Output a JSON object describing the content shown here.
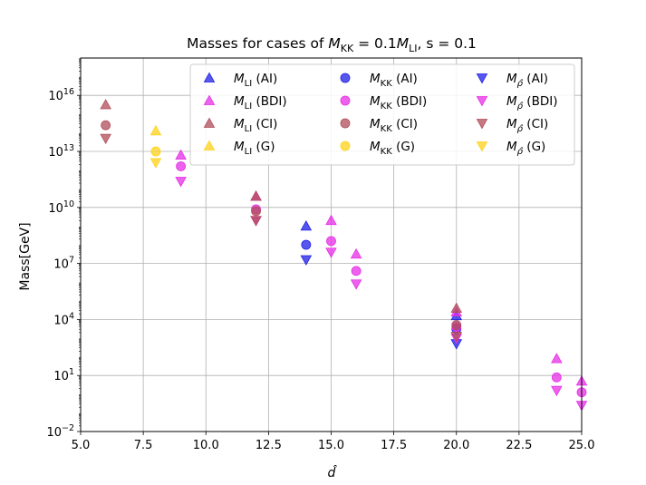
{
  "chart_data": {
    "type": "scatter",
    "title": "Masses for cases of M_KK = 0.1M_LI, s = 0.1",
    "title_parts": {
      "prefix": "Masses for cases of ",
      "m": "M",
      "kk_sub": "KK",
      "eq": " = 0.1",
      "li_sub": "LI",
      "suffix": ", s = 0.1"
    },
    "xlabel": "d̂",
    "ylabel": "Mass[GeV]",
    "y_scale": "log",
    "xlim": [
      5.0,
      25.0
    ],
    "ylim_exp": [
      -2,
      18
    ],
    "grid": true,
    "x_ticks": [
      {
        "value": 5.0,
        "label": "5.0"
      },
      {
        "value": 7.5,
        "label": "7.5"
      },
      {
        "value": 10.0,
        "label": "10.0"
      },
      {
        "value": 12.5,
        "label": "12.5"
      },
      {
        "value": 15.0,
        "label": "15.0"
      },
      {
        "value": 17.5,
        "label": "17.5"
      },
      {
        "value": 20.0,
        "label": "20.0"
      },
      {
        "value": 22.5,
        "label": "22.5"
      },
      {
        "value": 25.0,
        "label": "25.0"
      }
    ],
    "y_ticks": [
      {
        "exp": -2,
        "base": "10",
        "sup": "−2"
      },
      {
        "exp": 1,
        "base": "10",
        "sup": "1"
      },
      {
        "exp": 4,
        "base": "10",
        "sup": "4"
      },
      {
        "exp": 7,
        "base": "10",
        "sup": "7"
      },
      {
        "exp": 10,
        "base": "10",
        "sup": "10"
      },
      {
        "exp": 13,
        "base": "10",
        "sup": "13"
      },
      {
        "exp": 16,
        "base": "10",
        "sup": "16"
      }
    ],
    "legend_position": "top-right",
    "series": [
      {
        "name": "M_LI (AI)",
        "sym": "LI",
        "group": "AI",
        "marker": "triangle-up",
        "color": "#1f1fe6",
        "points": [
          {
            "x": 14,
            "log10_mass": 9.0
          },
          {
            "x": 20,
            "log10_mass": 4.2
          }
        ]
      },
      {
        "name": "M_LI (BDI)",
        "sym": "LI",
        "group": "BDI",
        "marker": "triangle-up",
        "color": "#e62ee6",
        "points": [
          {
            "x": 9,
            "log10_mass": 12.8
          },
          {
            "x": 12,
            "log10_mass": 10.6
          },
          {
            "x": 15,
            "log10_mass": 9.3
          },
          {
            "x": 16,
            "log10_mass": 7.5
          },
          {
            "x": 20,
            "log10_mass": 4.4
          },
          {
            "x": 24,
            "log10_mass": 1.9
          },
          {
            "x": 25,
            "log10_mass": 0.7
          }
        ]
      },
      {
        "name": "M_LI (CI)",
        "sym": "LI",
        "group": "CI",
        "marker": "triangle-up",
        "color": "#b04c5a",
        "points": [
          {
            "x": 6,
            "log10_mass": 15.5
          },
          {
            "x": 12,
            "log10_mass": 10.6
          },
          {
            "x": 20,
            "log10_mass": 4.6
          }
        ]
      },
      {
        "name": "M_LI (G)",
        "sym": "LI",
        "group": "G",
        "marker": "triangle-up",
        "color": "#ffd21a",
        "points": [
          {
            "x": 8,
            "log10_mass": 14.1
          }
        ]
      },
      {
        "name": "M_KK (AI)",
        "sym": "KK",
        "group": "AI",
        "marker": "circle",
        "color": "#1f1fe6",
        "points": [
          {
            "x": 14,
            "log10_mass": 8.0
          },
          {
            "x": 20,
            "log10_mass": 3.5
          }
        ]
      },
      {
        "name": "M_KK (BDI)",
        "sym": "KK",
        "group": "BDI",
        "marker": "circle",
        "color": "#e62ee6",
        "points": [
          {
            "x": 9,
            "log10_mass": 12.2
          },
          {
            "x": 12,
            "log10_mass": 9.9
          },
          {
            "x": 15,
            "log10_mass": 8.2
          },
          {
            "x": 16,
            "log10_mass": 6.6
          },
          {
            "x": 20,
            "log10_mass": 3.6
          },
          {
            "x": 24,
            "log10_mass": 0.9
          },
          {
            "x": 25,
            "log10_mass": 0.1
          }
        ]
      },
      {
        "name": "M_KK (CI)",
        "sym": "KK",
        "group": "CI",
        "marker": "circle",
        "color": "#b04c5a",
        "points": [
          {
            "x": 6,
            "log10_mass": 14.4
          },
          {
            "x": 12,
            "log10_mass": 9.8
          },
          {
            "x": 20,
            "log10_mass": 3.7
          }
        ]
      },
      {
        "name": "M_KK (G)",
        "sym": "KK",
        "group": "G",
        "marker": "circle",
        "color": "#ffd21a",
        "points": [
          {
            "x": 8,
            "log10_mass": 13.0
          }
        ]
      },
      {
        "name": "M_rho (AI)",
        "sym": "rho",
        "group": "AI",
        "marker": "triangle-down",
        "color": "#1f1fe6",
        "points": [
          {
            "x": 14,
            "log10_mass": 7.2
          },
          {
            "x": 20,
            "log10_mass": 2.7
          }
        ]
      },
      {
        "name": "M_rho (BDI)",
        "sym": "rho",
        "group": "BDI",
        "marker": "triangle-down",
        "color": "#e62ee6",
        "points": [
          {
            "x": 9,
            "log10_mass": 11.4
          },
          {
            "x": 12,
            "log10_mass": 9.3
          },
          {
            "x": 15,
            "log10_mass": 7.6
          },
          {
            "x": 16,
            "log10_mass": 5.9
          },
          {
            "x": 20,
            "log10_mass": 3.0
          },
          {
            "x": 24,
            "log10_mass": 0.2
          },
          {
            "x": 25,
            "log10_mass": -0.6
          }
        ]
      },
      {
        "name": "M_rho (CI)",
        "sym": "rho",
        "group": "CI",
        "marker": "triangle-down",
        "color": "#b04c5a",
        "points": [
          {
            "x": 6,
            "log10_mass": 13.7
          },
          {
            "x": 12,
            "log10_mass": 9.3
          },
          {
            "x": 20,
            "log10_mass": 3.1
          }
        ]
      },
      {
        "name": "M_rho (G)",
        "sym": "rho",
        "group": "G",
        "marker": "triangle-down",
        "color": "#ffd21a",
        "points": [
          {
            "x": 8,
            "log10_mass": 12.4
          }
        ]
      }
    ]
  }
}
